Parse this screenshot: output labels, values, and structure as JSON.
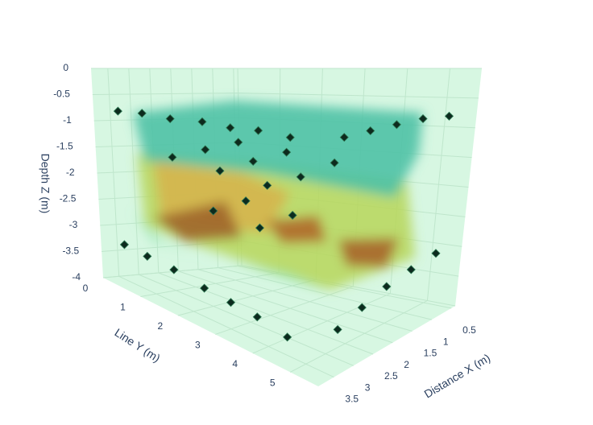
{
  "chart_data": {
    "type": "scatter3d",
    "xaxis_title": "Distance X (m)",
    "yaxis_title": "Line Y (m)",
    "zaxis_title": "Depth Z (m)",
    "xlim": [
      0.4,
      3.9
    ],
    "ylim": [
      0,
      5.75
    ],
    "zlim": [
      -4,
      0
    ],
    "xticks": [
      0.5,
      1,
      1.5,
      2,
      2.5,
      3,
      3.5
    ],
    "yticks": [
      0,
      1,
      2,
      3,
      4,
      5
    ],
    "zticks": [
      0,
      -0.5,
      -1,
      -1.5,
      -2,
      -2.5,
      -3,
      -3.5,
      -4
    ],
    "grid": true,
    "series": [
      {
        "color": "#0d2b1e",
        "x": [
          3.6,
          3.6,
          3.6,
          3.6,
          3.6,
          3.6,
          3.6,
          3.0,
          2.4,
          1.8,
          1.2,
          0.6,
          3.6,
          3.6,
          3.6,
          3.6,
          3.6,
          3.6,
          3.6,
          3.0,
          2.4,
          1.8,
          1.2,
          0.6,
          3.0,
          3.0,
          3.0,
          2.2,
          2.2,
          2.2,
          1.4,
          1.4,
          1.4,
          2.6,
          2.6,
          1.8,
          1.8
        ],
        "y": [
          0.3,
          0.9,
          1.6,
          2.4,
          3.1,
          3.8,
          4.6,
          5.3,
          5.3,
          5.3,
          5.3,
          5.3,
          0.3,
          0.9,
          1.6,
          2.4,
          3.1,
          3.8,
          4.6,
          5.3,
          5.3,
          5.3,
          5.3,
          5.3,
          1.0,
          2.2,
          3.4,
          1.0,
          2.2,
          3.4,
          1.0,
          2.2,
          3.4,
          1.6,
          2.8,
          1.6,
          2.8
        ],
        "z": [
          -0.8,
          -0.8,
          -0.85,
          -0.85,
          -0.9,
          -0.9,
          -0.95,
          -0.95,
          -0.9,
          -0.85,
          -0.8,
          -0.8,
          -3.3,
          -3.35,
          -3.4,
          -3.5,
          -3.55,
          -3.6,
          -3.7,
          -3.6,
          -3.45,
          -3.3,
          -3.2,
          -3.1,
          -1.6,
          -1.7,
          -1.8,
          -1.5,
          -1.6,
          -1.75,
          -1.4,
          -1.5,
          -1.6,
          -2.5,
          -2.6,
          -2.4,
          -2.5
        ]
      }
    ]
  }
}
